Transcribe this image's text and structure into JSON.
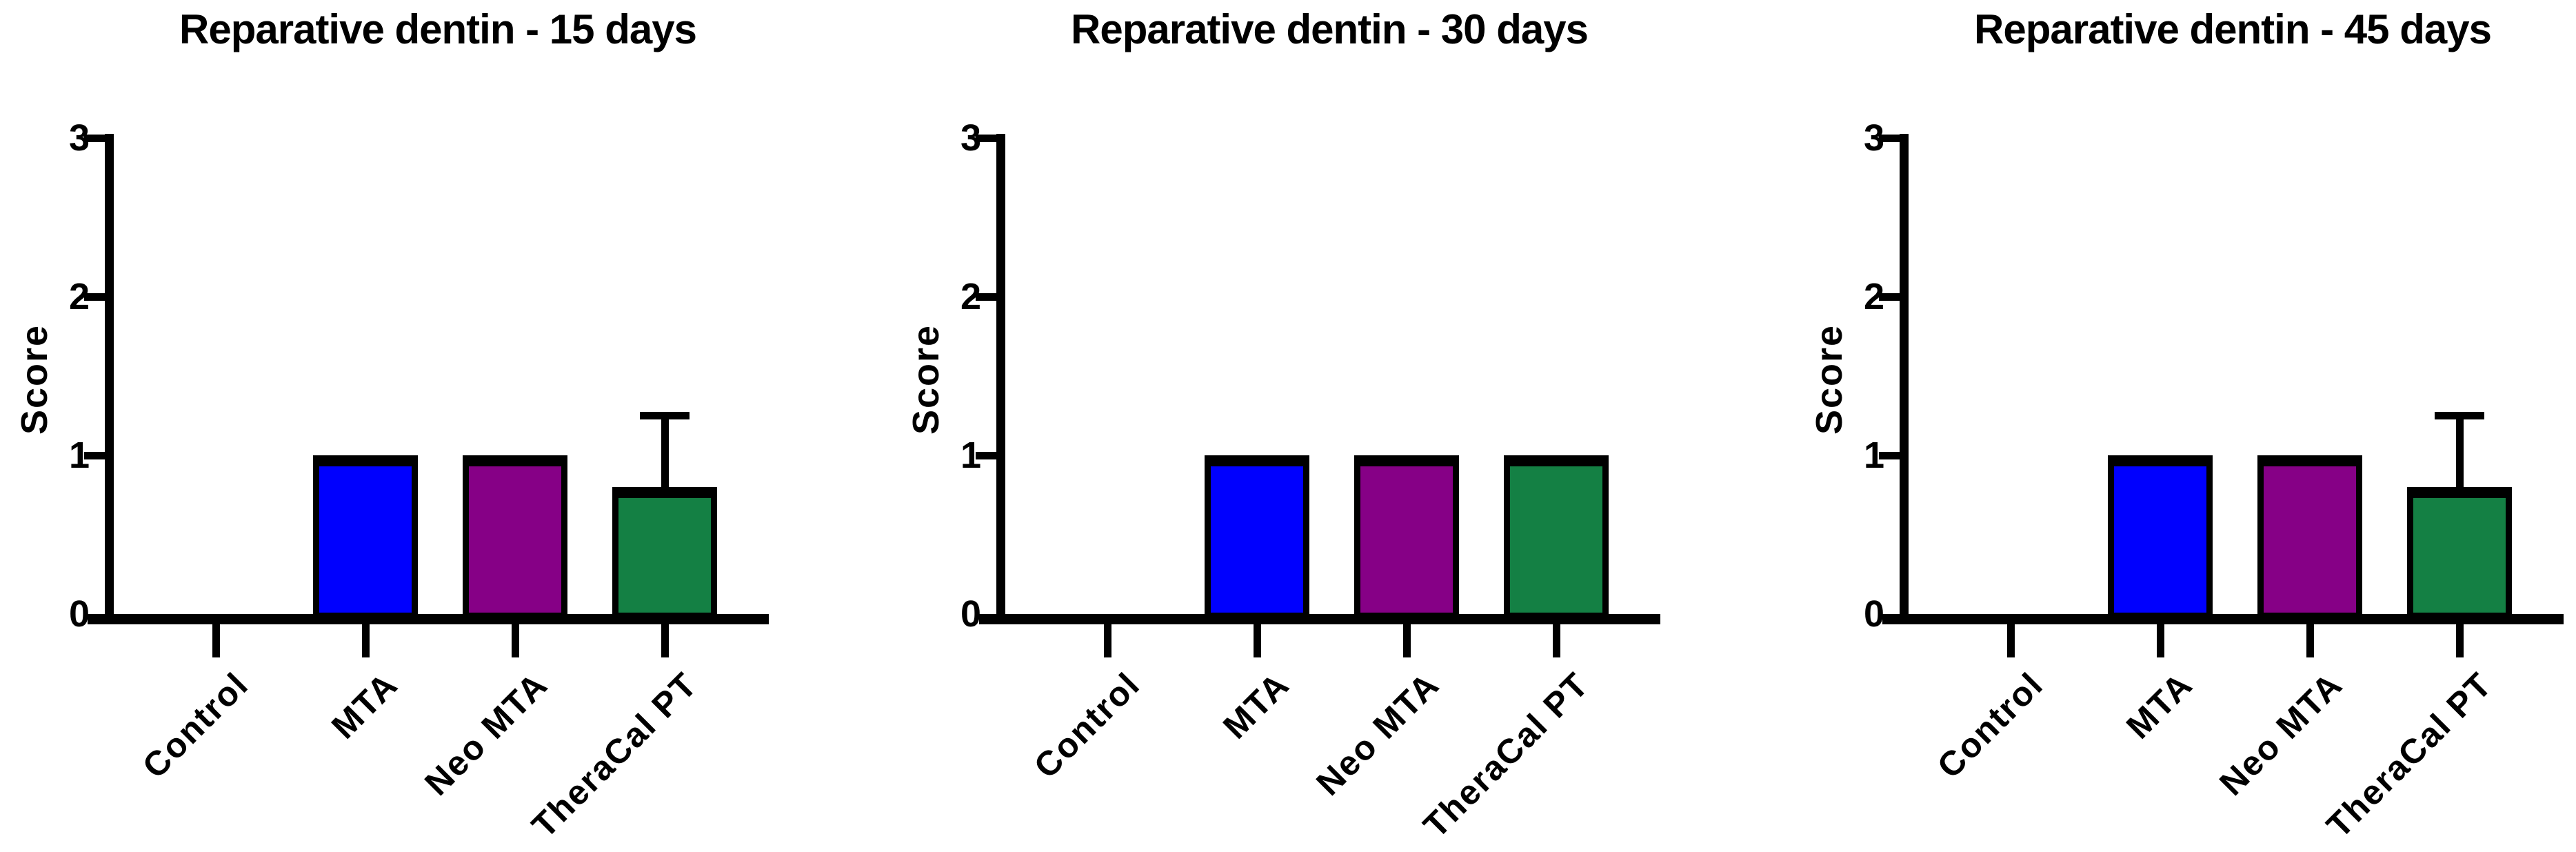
{
  "background": "#ffffff",
  "axis_color": "#000000",
  "text_color": "#000000",
  "chart_data": [
    {
      "type": "bar",
      "title": "Reparative dentin - 15 days",
      "ylabel": "Score",
      "ylim": [
        0,
        3
      ],
      "yticks": [
        "0",
        "1",
        "2",
        "3"
      ],
      "grid": false,
      "legend": false,
      "categories": [
        "Control",
        "MTA",
        "Neo MTA",
        "TheraCal PT"
      ],
      "values": [
        0,
        1,
        1,
        0.8
      ],
      "error_upper": [
        null,
        null,
        null,
        0.45
      ],
      "bar_colors": [
        null,
        "#0000fe",
        "#860086",
        "#148044"
      ]
    },
    {
      "type": "bar",
      "title": "Reparative dentin - 30 days",
      "ylabel": "Score",
      "ylim": [
        0,
        3
      ],
      "yticks": [
        "0",
        "1",
        "2",
        "3"
      ],
      "grid": false,
      "legend": false,
      "categories": [
        "Control",
        "MTA",
        "Neo MTA",
        "TheraCal PT"
      ],
      "values": [
        0,
        1,
        1,
        1
      ],
      "error_upper": [
        null,
        null,
        null,
        null
      ],
      "bar_colors": [
        null,
        "#0000fe",
        "#860086",
        "#148044"
      ]
    },
    {
      "type": "bar",
      "title": "Reparative dentin - 45 days",
      "ylabel": "Score",
      "ylim": [
        0,
        3
      ],
      "yticks": [
        "0",
        "1",
        "2",
        "3"
      ],
      "grid": false,
      "legend": false,
      "categories": [
        "Control",
        "MTA",
        "Neo MTA",
        "TheraCal PT"
      ],
      "values": [
        0,
        1,
        1,
        0.8
      ],
      "error_upper": [
        null,
        null,
        null,
        0.45
      ],
      "bar_colors": [
        null,
        "#0000fe",
        "#860086",
        "#148044"
      ]
    }
  ]
}
